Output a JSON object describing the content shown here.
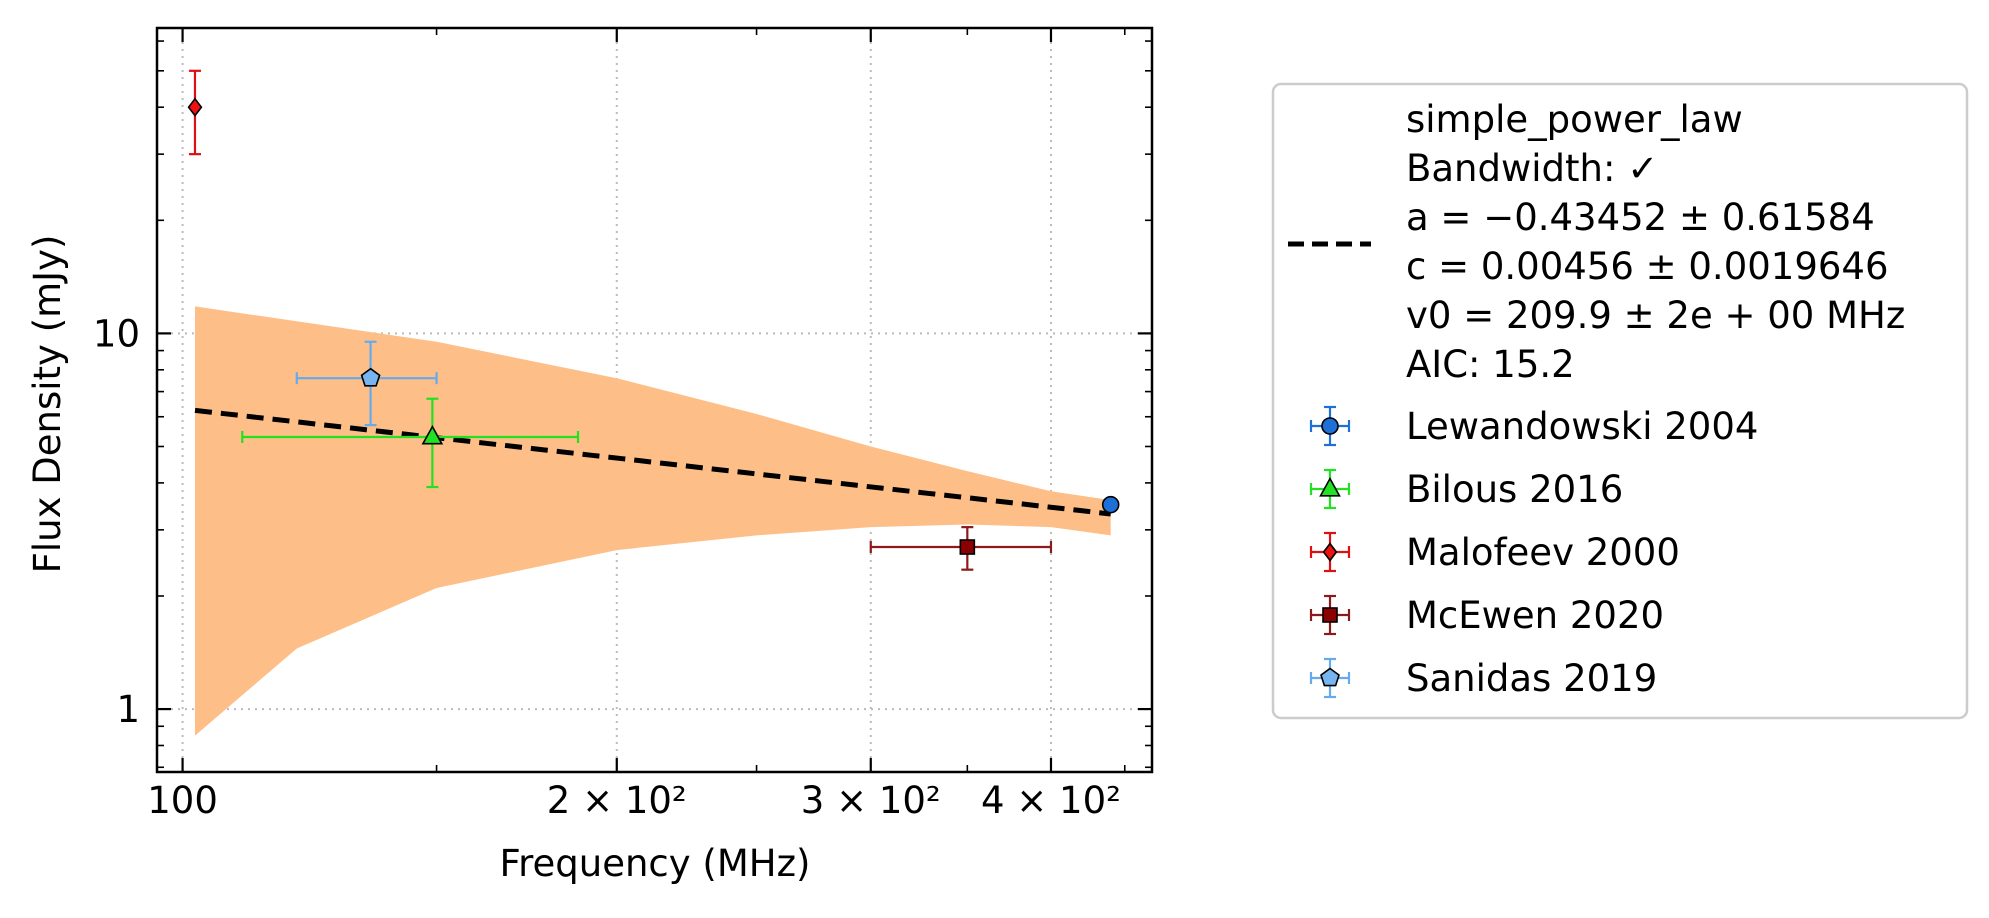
{
  "chart_data": {
    "type": "scatter",
    "xlabel": "Frequency (MHz)",
    "ylabel": "Flux Density (mJy)",
    "xscale": "log",
    "yscale": "log",
    "xlim": [
      96,
      470
    ],
    "ylim": [
      0.68,
      65
    ],
    "x_ticks": [
      {
        "value": 100,
        "label": "100"
      },
      {
        "value": 200,
        "label": "2 × 10²"
      },
      {
        "value": 300,
        "label": "3 × 10²"
      },
      {
        "value": 400,
        "label": "4 × 10²"
      }
    ],
    "y_ticks": [
      {
        "value": 1,
        "label": "1"
      },
      {
        "value": 10,
        "label": "10"
      }
    ],
    "grid": "dotted at major ticks",
    "legend_position": "outside right",
    "fit": {
      "model": "simple_power_law",
      "a": -0.43452,
      "c": 0.00456,
      "v0": 209.9,
      "x_range": [
        102,
        440
      ],
      "line_color": "#000000",
      "band_color": "#fdbf87",
      "band_upper": [
        [
          102,
          11.8
        ],
        [
          150,
          9.5
        ],
        [
          200,
          7.6
        ],
        [
          250,
          6.1
        ],
        [
          300,
          5.0
        ],
        [
          350,
          4.3
        ],
        [
          400,
          3.8
        ],
        [
          440,
          3.6
        ]
      ],
      "band_lower": [
        [
          102,
          0.85
        ],
        [
          120,
          1.45
        ],
        [
          150,
          2.1
        ],
        [
          200,
          2.65
        ],
        [
          250,
          2.9
        ],
        [
          300,
          3.05
        ],
        [
          350,
          3.1
        ],
        [
          400,
          3.05
        ],
        [
          440,
          2.9
        ]
      ]
    },
    "series": [
      {
        "name": "Lewandowski 2004",
        "marker": "circle",
        "color": "#1f6fd8",
        "ecolor": "#1f6fd8",
        "points": [
          {
            "x": 440,
            "y": 3.5,
            "xerr": [
              0,
              0
            ],
            "yerr": [
              0,
              0
            ]
          }
        ]
      },
      {
        "name": "Bilous 2016",
        "marker": "triangle",
        "color": "#22e022",
        "ecolor": "#22e022",
        "points": [
          {
            "x": 149,
            "y": 5.3,
            "xerr": [
              39,
              39
            ],
            "yerr": [
              1.4,
              1.4
            ]
          }
        ]
      },
      {
        "name": "Malofeev 2000",
        "marker": "diamond",
        "color": "#ee1111",
        "ecolor": "#dd1111",
        "points": [
          {
            "x": 102,
            "y": 40,
            "xerr": [
              0,
              0
            ],
            "yerr": [
              10,
              10
            ]
          }
        ]
      },
      {
        "name": "McEwen 2020",
        "marker": "square",
        "color": "#8b0000",
        "ecolor": "#8b1a1a",
        "points": [
          {
            "x": 350,
            "y": 2.7,
            "xerr": [
              50,
              50
            ],
            "yerr": [
              0.35,
              0.35
            ]
          }
        ]
      },
      {
        "name": "Sanidas 2019",
        "marker": "pentagon",
        "color": "#77b5f2",
        "ecolor": "#66aaee",
        "points": [
          {
            "x": 135,
            "y": 7.6,
            "xerr": [
              15,
              15
            ],
            "yerr": [
              1.9,
              1.9
            ]
          }
        ]
      }
    ]
  },
  "legend": {
    "fit_lines": [
      "simple_power_law",
      "Bandwidth: ✓",
      "a = −0.43452 ± 0.61584",
      "c = 0.00456 ± 0.0019646",
      "v0 = 209.9 ± 2e + 00 MHz",
      "AIC: 15.2"
    ],
    "entries": [
      "Lewandowski 2004",
      "Bilous 2016",
      "Malofeev 2000",
      "McEwen 2020",
      "Sanidas 2019"
    ]
  }
}
